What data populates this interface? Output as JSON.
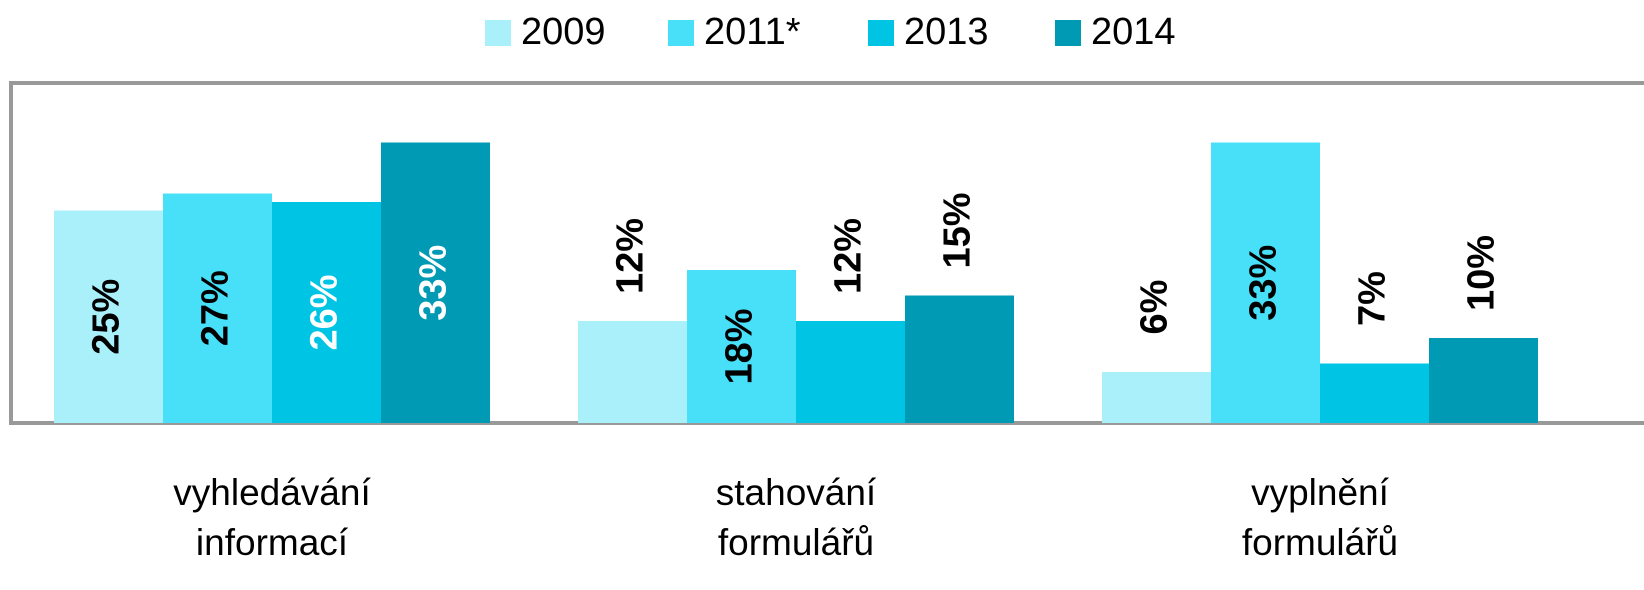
{
  "chart_data": {
    "type": "bar",
    "categories": [
      "vyhledávání informací",
      "stahování formulářů",
      "vyplnění formulářů"
    ],
    "series": [
      {
        "name": "2009",
        "color": "#aaf0fa",
        "values": [
          25,
          12,
          6
        ]
      },
      {
        "name": "2011*",
        "color": "#48e0f8",
        "values": [
          27,
          18,
          33
        ]
      },
      {
        "name": "2013",
        "color": "#00c4e4",
        "values": [
          26,
          12,
          7
        ]
      },
      {
        "name": "2014",
        "color": "#009ab5",
        "values": [
          33,
          15,
          10
        ]
      }
    ],
    "value_labels": [
      [
        "25%",
        "12%",
        "6%"
      ],
      [
        "27%",
        "18%",
        "33%"
      ],
      [
        "26%",
        "12%",
        "7%"
      ],
      [
        "33%",
        "15%",
        "10%"
      ]
    ],
    "ylim": [
      0,
      40
    ],
    "legend": "top"
  }
}
